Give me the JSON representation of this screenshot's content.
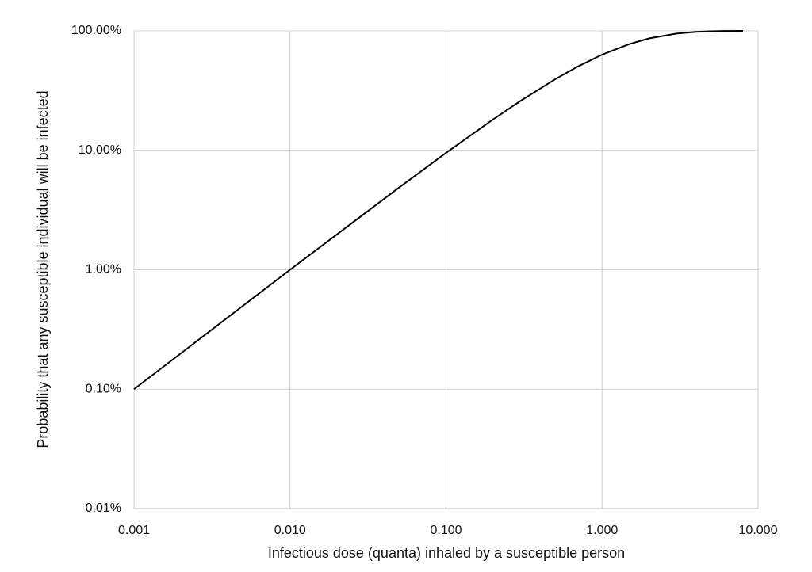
{
  "chart_data": {
    "type": "line",
    "x_label": "Infectious dose (quanta) inhaled by a susceptible person",
    "y_label": "Probability that any susceptible individual will be infected",
    "x": [
      0.001,
      0.002,
      0.005,
      0.01,
      0.02,
      0.05,
      0.1,
      0.2,
      0.3,
      0.5,
      0.7,
      1,
      1.5,
      2,
      3,
      4,
      5,
      6,
      8
    ],
    "values": [
      0.1,
      0.2,
      0.5,
      1.0,
      1.98,
      4.88,
      9.52,
      18.13,
      25.92,
      39.35,
      50.34,
      63.21,
      77.69,
      86.47,
      95.02,
      98.17,
      99.33,
      99.75,
      99.97
    ],
    "color": "#000000",
    "xscale": "log",
    "yscale": "log",
    "xlim": [
      0.001,
      10
    ],
    "ylim": [
      0.01,
      100
    ],
    "xticks": [
      0.001,
      {
        "value": 0.01,
        "label": "0.010"
      },
      {
        "value": 0.1,
        "label": "0.100"
      },
      {
        "value": 1,
        "label": "1.000"
      },
      {
        "value": 10,
        "label": "10.000"
      }
    ],
    "yticks": [
      {
        "value": 0.01,
        "label": "0.01%"
      },
      {
        "value": 0.1,
        "label": "0.10%"
      },
      {
        "value": 1,
        "label": "1.00%"
      },
      {
        "value": 10,
        "label": "10.00%"
      },
      {
        "value": 100,
        "label": "100.00%"
      }
    ],
    "grid": true
  }
}
